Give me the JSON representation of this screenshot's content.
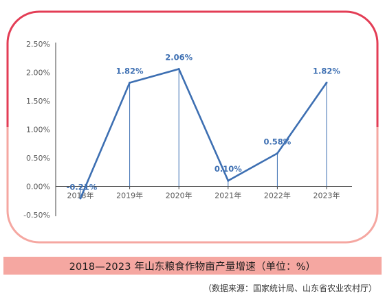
{
  "caption": "2018—2023 年山东粮食作物亩产量增速（单位：%）",
  "source": "（数据来源：国家统计局、山东省农业农村厅）",
  "colors": {
    "line": "#3d6fb2",
    "label": "#3d6fb2",
    "frame_top": "#e33d55",
    "frame_bottom": "#f5a7a1",
    "caption_bg": "#f5a7a1"
  },
  "chart_data": {
    "type": "line",
    "categories": [
      "2018年",
      "2019年",
      "2020年",
      "2021年",
      "2022年",
      "2023年"
    ],
    "values": [
      -0.21,
      1.82,
      2.06,
      0.1,
      0.58,
      1.82
    ],
    "data_labels": [
      "-0.21%",
      "1.82%",
      "2.06%",
      "0.10%",
      "0.58%",
      "1.82%"
    ],
    "y_ticks": [
      "2.50%",
      "2.00%",
      "1.50%",
      "1.00%",
      "0.50%",
      "0.00%",
      "-0.50%"
    ],
    "y_tick_values": [
      2.5,
      2.0,
      1.5,
      1.0,
      0.5,
      0.0,
      -0.5
    ],
    "ylim": [
      -0.5,
      2.5
    ],
    "grid": false,
    "drop_lines": true
  }
}
